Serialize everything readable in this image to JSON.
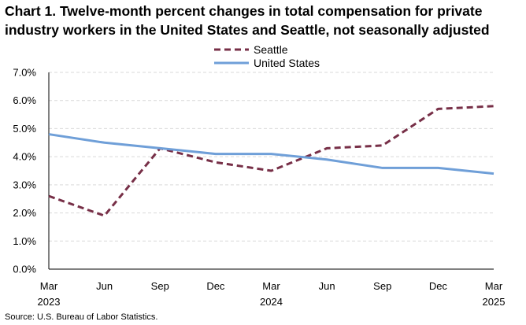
{
  "chart_data": {
    "type": "line",
    "title": "Chart 1. Twelve-month percent changes in total compensation for private industry workers in the United States and Seattle, not seasonally adjusted",
    "source": "Source: U.S. Bureau of Labor Statistics.",
    "x_ticks": [
      {
        "month": "Mar",
        "year": "2023"
      },
      {
        "month": "Jun",
        "year": ""
      },
      {
        "month": "Sep",
        "year": ""
      },
      {
        "month": "Dec",
        "year": ""
      },
      {
        "month": "Mar",
        "year": "2024"
      },
      {
        "month": "Jun",
        "year": ""
      },
      {
        "month": "Sep",
        "year": ""
      },
      {
        "month": "Dec",
        "year": ""
      },
      {
        "month": "Mar",
        "year": "2025"
      }
    ],
    "y_ticks": [
      "0.0%",
      "1.0%",
      "2.0%",
      "3.0%",
      "4.0%",
      "5.0%",
      "6.0%",
      "7.0%"
    ],
    "ylim": [
      0,
      7
    ],
    "series": [
      {
        "name": "Seattle",
        "style": "dashed",
        "color": "#772f47",
        "values": [
          2.6,
          1.9,
          4.3,
          3.8,
          3.5,
          4.3,
          4.4,
          5.7,
          5.8
        ]
      },
      {
        "name": "United States",
        "style": "solid",
        "color": "#6f9fd8",
        "values": [
          4.8,
          4.5,
          4.3,
          4.1,
          4.1,
          3.9,
          3.6,
          3.6,
          3.4
        ]
      }
    ]
  }
}
